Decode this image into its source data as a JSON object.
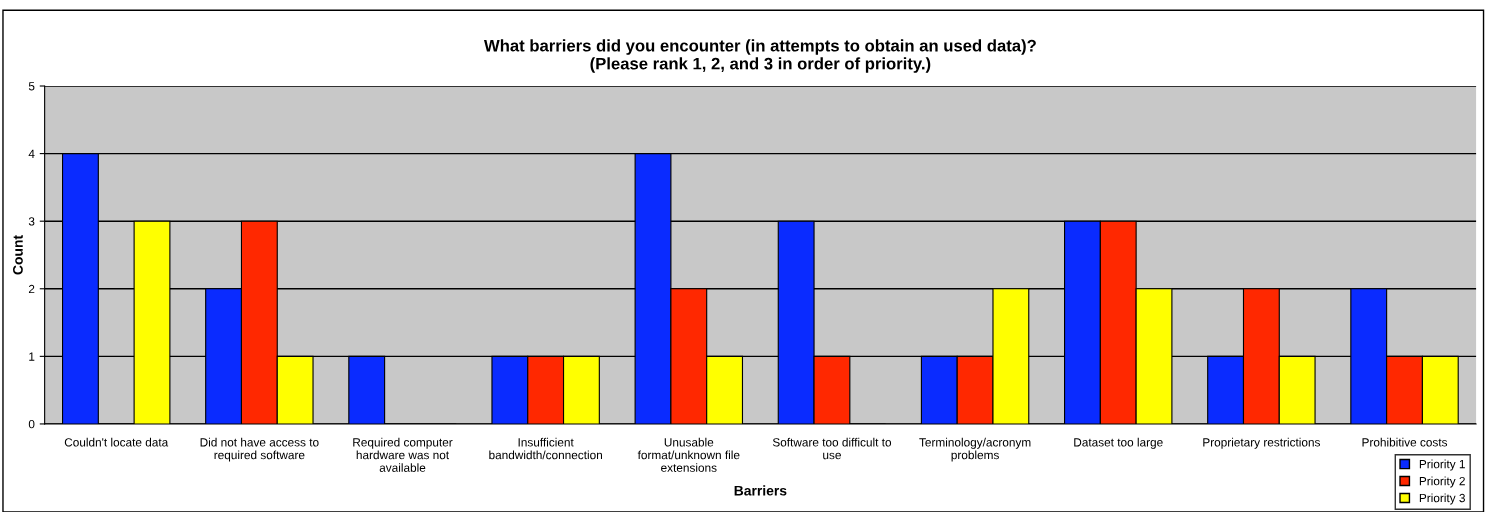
{
  "chart_data": {
    "type": "bar",
    "title": "What barriers did you encounter (in attempts to obtain an used data)?\n(Please rank 1, 2, and 3 in order of priority.)",
    "xlabel": "Barriers",
    "ylabel": "Count",
    "categories": [
      "Couldn't locate data",
      "Did not have access to\nrequired software",
      "Required computer\nhardware was not\navailable",
      "Insufficient\nbandwidth/connection",
      "Unusable\nformat/unknown file\nextensions",
      "Software too difficult to\nuse",
      "Terminology/acronym\nproblems",
      "Dataset too large",
      "Proprietary restrictions",
      "Prohibitive costs"
    ],
    "series": [
      {
        "name": "Priority 1",
        "color": "#0a2bff",
        "values": [
          4,
          2,
          1,
          1,
          4,
          3,
          1,
          3,
          1,
          2
        ]
      },
      {
        "name": "Priority 2",
        "color": "#ff2800",
        "values": [
          0,
          3,
          0,
          1,
          2,
          1,
          1,
          3,
          2,
          1
        ]
      },
      {
        "name": "Priority 3",
        "color": "#ffff00",
        "values": [
          3,
          1,
          0,
          1,
          1,
          0,
          2,
          2,
          1,
          1
        ]
      }
    ],
    "ylim": [
      0,
      5
    ],
    "yticks": [
      0,
      1,
      2,
      3,
      4,
      5
    ],
    "grid": "y",
    "legend": "bottom right"
  }
}
